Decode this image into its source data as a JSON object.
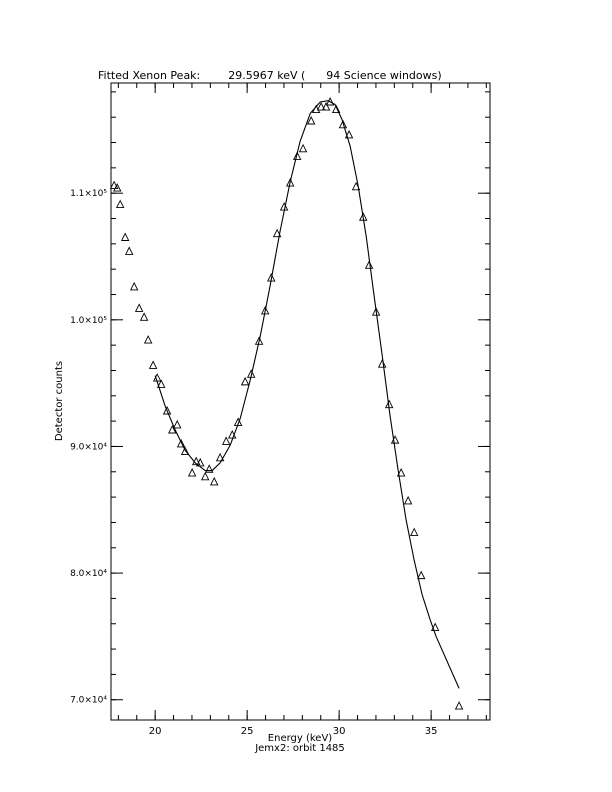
{
  "chart_data": {
    "type": "scatter",
    "title": "Fitted Xenon Peak:        29.5967 keV (      94 Science windows)",
    "x_label": "Energy (keV)",
    "caption": "Jemx2: orbit 1485",
    "y_label": "Detector counts",
    "series": [
      {
        "style": "markers",
        "color": "#000000",
        "x": [
          17.77,
          17.94,
          18.1,
          18.37,
          18.59,
          18.86,
          19.13,
          19.4,
          19.62,
          19.89,
          20.11,
          20.33,
          20.65,
          20.93,
          21.2,
          21.41,
          21.63,
          22.01,
          22.23,
          22.45,
          22.72,
          22.94,
          23.21,
          23.53,
          23.86,
          24.19,
          24.51,
          24.89,
          25.22,
          25.65,
          25.98,
          26.31,
          26.63,
          27.01,
          27.34,
          27.72,
          28.04,
          28.48,
          28.75,
          29.02,
          29.29,
          29.51,
          29.84,
          30.21,
          30.54,
          30.92,
          31.31,
          31.63,
          32.01,
          32.34,
          32.72,
          33.04,
          33.37,
          33.75,
          34.08,
          34.46,
          35.22,
          36.52
        ],
        "values": [
          110600,
          110400,
          109100,
          106500,
          105400,
          102600,
          100900,
          100200,
          98400,
          96400,
          95400,
          94900,
          92800,
          91300,
          91700,
          90200,
          89600,
          87900,
          88800,
          88700,
          87600,
          88200,
          87200,
          89100,
          90400,
          90900,
          91900,
          95100,
          95700,
          98300,
          100700,
          103300,
          106800,
          108900,
          110800,
          112900,
          113500,
          115700,
          116600,
          116800,
          116800,
          117200,
          116600,
          115400,
          114600,
          110500,
          108100,
          104300,
          100600,
          96500,
          93300,
          90500,
          87900,
          85700,
          83200,
          79800,
          75700,
          69500
        ]
      },
      {
        "style": "line",
        "color": "#000000",
        "x": [
          20.0,
          20.54,
          21.09,
          21.63,
          22.18,
          22.72,
          23.1,
          23.53,
          24.08,
          24.62,
          25.16,
          25.71,
          26.25,
          26.79,
          27.34,
          27.88,
          28.43,
          28.97,
          29.4,
          29.78,
          30.16,
          30.6,
          31.03,
          31.47,
          31.9,
          32.34,
          32.77,
          33.21,
          33.64,
          34.08,
          34.51,
          34.95,
          35.27,
          36.52
        ],
        "values": [
          95600,
          93200,
          91300,
          89700,
          88700,
          88100,
          88100,
          88700,
          90100,
          92200,
          95200,
          98700,
          102700,
          107000,
          110900,
          114100,
          116300,
          117200,
          117300,
          117000,
          115800,
          113700,
          110600,
          106600,
          101900,
          97200,
          92400,
          88100,
          84200,
          81000,
          78300,
          76300,
          75000,
          70900
        ]
      }
    ],
    "xlim": [
      17.6,
      38.2
    ],
    "xticks": [
      20,
      25,
      30,
      35
    ],
    "xminor_step": 1,
    "ylim": [
      68400,
      118700
    ],
    "yticks": [
      {
        "value": 70000,
        "label": "7.0×10⁴"
      },
      {
        "value": 80000,
        "label": "8.0×10⁴"
      },
      {
        "value": 90000,
        "label": "9.0×10⁴"
      },
      {
        "value": 100000,
        "label": "1.0×10⁵"
      },
      {
        "value": 110000,
        "label": "1.1×10⁵"
      }
    ],
    "yminor_step": 2000
  }
}
